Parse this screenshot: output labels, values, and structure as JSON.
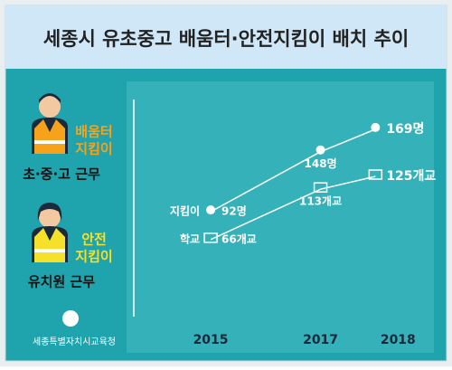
{
  "chart_data": {
    "type": "line",
    "title": "세종시 유초중고 배움터·안전지킴이 배치 추이",
    "x": [
      2015,
      2017,
      2018
    ],
    "xlim": [
      2013.6,
      2018.9
    ],
    "xticks": [
      2015,
      2017,
      2018
    ],
    "ylim": [
      0,
      190
    ],
    "series": [
      {
        "name": "지킴이",
        "color": "#ffffff",
        "values": [
          92,
          148,
          169
        ],
        "value_labels": [
          "92명",
          "148명",
          "169명"
        ]
      },
      {
        "name": "학교",
        "color": "#ffffff",
        "values": [
          66,
          113,
          125
        ],
        "value_labels": [
          "66개교",
          "113개교",
          "125개교"
        ]
      }
    ]
  },
  "side": {
    "groups": [
      {
        "label": [
          "배움터",
          "지킴이"
        ],
        "duty": "초·중·고 근무"
      },
      {
        "label": [
          "안전",
          "지킴이"
        ],
        "duty": "유치원 근무"
      }
    ],
    "org": "세종특별자치시교육청"
  }
}
